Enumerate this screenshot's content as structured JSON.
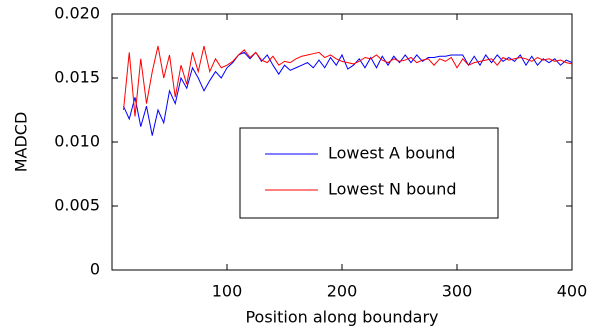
{
  "chart_data": {
    "type": "line",
    "xlabel": "Position along boundary",
    "ylabel": "MADCD",
    "xlim": [
      0,
      400
    ],
    "xticks": [
      100,
      200,
      300,
      400
    ],
    "ylim": [
      0,
      0.02
    ],
    "yticks": [
      {
        "value": 0,
        "label": "0"
      },
      0.005,
      {
        "value": 0.01,
        "label": "0.010"
      },
      0.015,
      {
        "value": 0.02,
        "label": "0.020"
      }
    ],
    "grid": false,
    "x": [
      10,
      15,
      20,
      25,
      30,
      35,
      40,
      45,
      50,
      55,
      60,
      65,
      70,
      75,
      80,
      85,
      90,
      95,
      100,
      105,
      110,
      115,
      120,
      125,
      130,
      135,
      140,
      145,
      150,
      155,
      160,
      165,
      170,
      175,
      180,
      185,
      190,
      195,
      200,
      205,
      210,
      215,
      220,
      225,
      230,
      235,
      240,
      245,
      250,
      255,
      260,
      265,
      270,
      275,
      280,
      285,
      290,
      295,
      300,
      305,
      310,
      315,
      320,
      325,
      330,
      335,
      340,
      345,
      350,
      355,
      360,
      365,
      370,
      375,
      380,
      385,
      390,
      395,
      400
    ],
    "series": [
      {
        "name": "Lowest A bound",
        "color": "#0000ff",
        "values": [
          0.0128,
          0.0118,
          0.0135,
          0.0112,
          0.0128,
          0.0105,
          0.0125,
          0.0115,
          0.014,
          0.013,
          0.015,
          0.0142,
          0.0158,
          0.015,
          0.014,
          0.0148,
          0.0155,
          0.015,
          0.0158,
          0.0162,
          0.0168,
          0.017,
          0.0165,
          0.017,
          0.0163,
          0.0168,
          0.016,
          0.0153,
          0.016,
          0.0156,
          0.0158,
          0.016,
          0.0162,
          0.0158,
          0.0164,
          0.0158,
          0.0166,
          0.016,
          0.0168,
          0.0157,
          0.016,
          0.0165,
          0.0158,
          0.0166,
          0.0158,
          0.0167,
          0.016,
          0.0167,
          0.0162,
          0.0168,
          0.0162,
          0.0168,
          0.0163,
          0.0166,
          0.0166,
          0.0167,
          0.0167,
          0.0168,
          0.0168,
          0.0168,
          0.016,
          0.0167,
          0.016,
          0.0168,
          0.0162,
          0.0168,
          0.0163,
          0.0166,
          0.0163,
          0.0168,
          0.016,
          0.0167,
          0.016,
          0.0165,
          0.0162,
          0.0165,
          0.016,
          0.0164,
          0.0162
        ]
      },
      {
        "name": "Lowest N bound",
        "color": "#ff0000",
        "values": [
          0.0125,
          0.017,
          0.012,
          0.0165,
          0.013,
          0.0155,
          0.0175,
          0.015,
          0.0168,
          0.0135,
          0.016,
          0.0145,
          0.017,
          0.0155,
          0.0175,
          0.0155,
          0.0165,
          0.0158,
          0.016,
          0.0163,
          0.0168,
          0.0172,
          0.0166,
          0.017,
          0.0164,
          0.0162,
          0.0167,
          0.016,
          0.0163,
          0.0162,
          0.0165,
          0.0167,
          0.0168,
          0.0169,
          0.017,
          0.0166,
          0.0168,
          0.0165,
          0.0163,
          0.0162,
          0.0161,
          0.0163,
          0.0166,
          0.0165,
          0.0168,
          0.0164,
          0.0162,
          0.0165,
          0.0163,
          0.0164,
          0.0166,
          0.0162,
          0.0164,
          0.0165,
          0.016,
          0.0165,
          0.0163,
          0.0166,
          0.0158,
          0.0165,
          0.016,
          0.0162,
          0.0163,
          0.0164,
          0.0165,
          0.016,
          0.0166,
          0.0164,
          0.0165,
          0.0166,
          0.0165,
          0.0163,
          0.0166,
          0.0164,
          0.0165,
          0.0163,
          0.0164,
          0.0162,
          0.0161
        ]
      }
    ]
  }
}
